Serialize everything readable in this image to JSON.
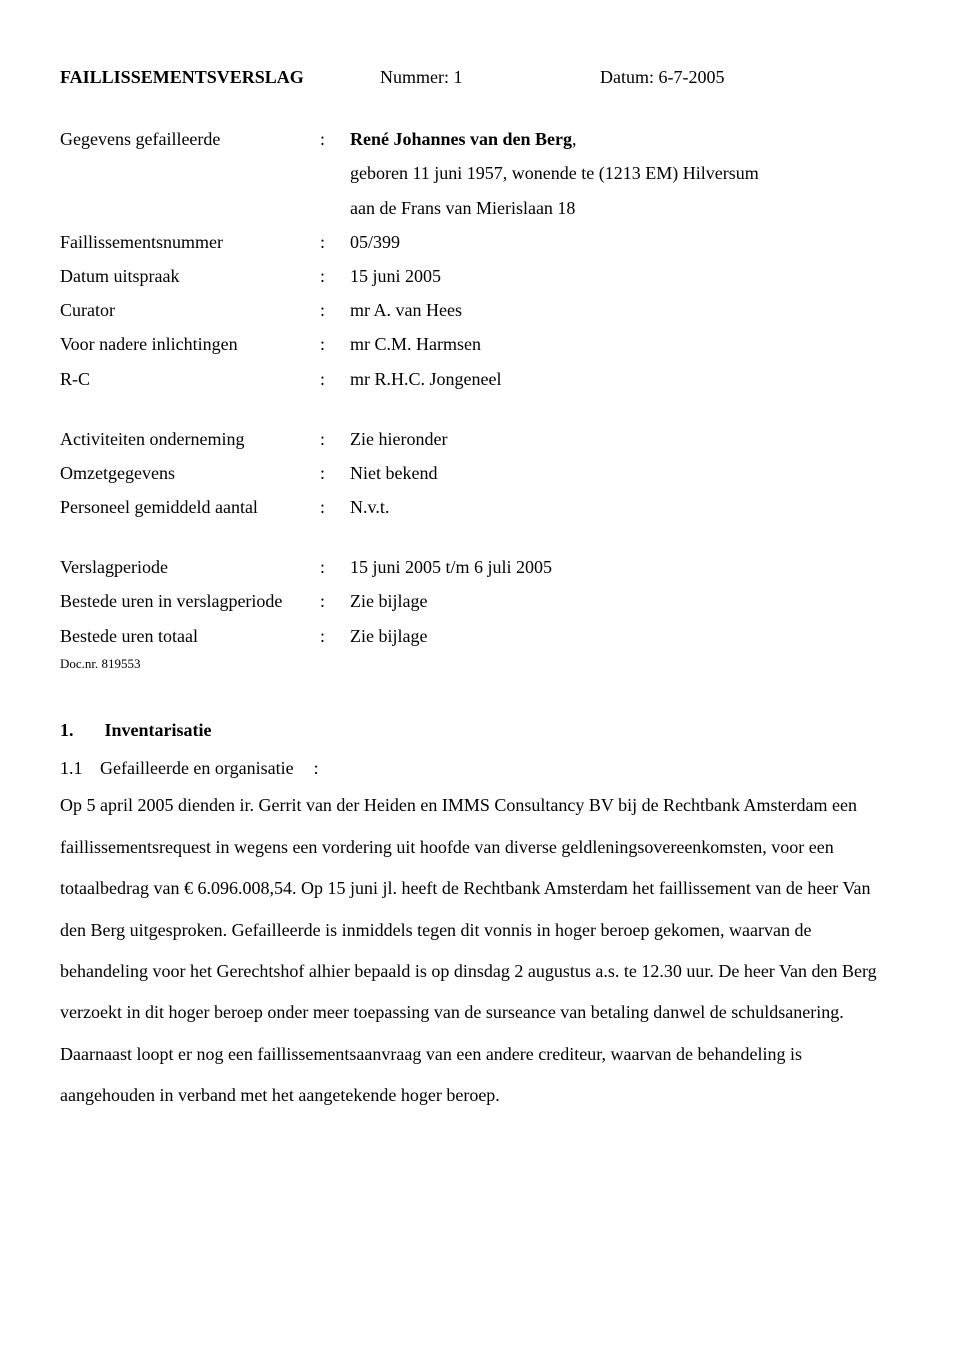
{
  "header": {
    "title": "FAILLISSEMENTSVERSLAG",
    "nummer_label": "Nummer: 1",
    "datum_label": "Datum: 6-7-2005"
  },
  "block1": {
    "rows": [
      {
        "label": "Gegevens gefailleerde",
        "value_bold": "René Johannes van den Berg",
        "value_cont": [
          "geboren 11 juni 1957, wonende te (1213 EM) Hilversum",
          "aan de Frans van Mierislaan 18"
        ]
      },
      {
        "label": "Faillissementsnummer",
        "value": "05/399"
      },
      {
        "label": "Datum uitspraak",
        "value": "15 juni 2005"
      },
      {
        "label": "Curator",
        "value": "mr A. van Hees"
      },
      {
        "label": "Voor nadere inlichtingen",
        "value": "mr C.M. Harmsen"
      },
      {
        "label": "R-C",
        "value": "mr R.H.C. Jongeneel"
      }
    ]
  },
  "block2": {
    "rows": [
      {
        "label": "Activiteiten onderneming",
        "value": "Zie hieronder"
      },
      {
        "label": "Omzetgegevens",
        "value": "Niet bekend"
      },
      {
        "label": "Personeel gemiddeld aantal",
        "value": "N.v.t."
      }
    ]
  },
  "block3": {
    "rows": [
      {
        "label": "Verslagperiode",
        "value": "15 juni 2005 t/m 6 juli 2005"
      },
      {
        "label": "Bestede uren in verslagperiode",
        "value": "Zie bijlage"
      },
      {
        "label": "Bestede uren totaal",
        "value": "Zie bijlage"
      }
    ],
    "docnr": "Doc.nr. 819553"
  },
  "section": {
    "num": "1.",
    "title": "Inventarisatie",
    "sub_num": "1.1",
    "sub_title": "Gefailleerde en organisatie",
    "sub_colon": ":",
    "body": "Op 5 april 2005 dienden ir. Gerrit van der Heiden en IMMS Consultancy BV bij de Rechtbank Amsterdam een faillissementsrequest in wegens een vordering uit hoofde van diverse geldleningsovereenkomsten, voor een totaalbedrag van € 6.096.008,54. Op 15 juni jl. heeft de Rechtbank Amsterdam het faillissement van de heer Van den Berg uitgesproken. Gefailleerde is inmiddels tegen dit vonnis in hoger beroep gekomen, waarvan de behandeling voor het Gerechtshof alhier bepaald is op dinsdag 2 augustus a.s. te 12.30 uur. De heer Van den Berg verzoekt in dit hoger beroep onder meer toepassing van de surseance van betaling danwel de schuldsanering. Daarnaast loopt er nog een faillissementsaanvraag van een andere crediteur, waarvan de behandeling is aangehouden in verband met het aangetekende hoger beroep."
  }
}
